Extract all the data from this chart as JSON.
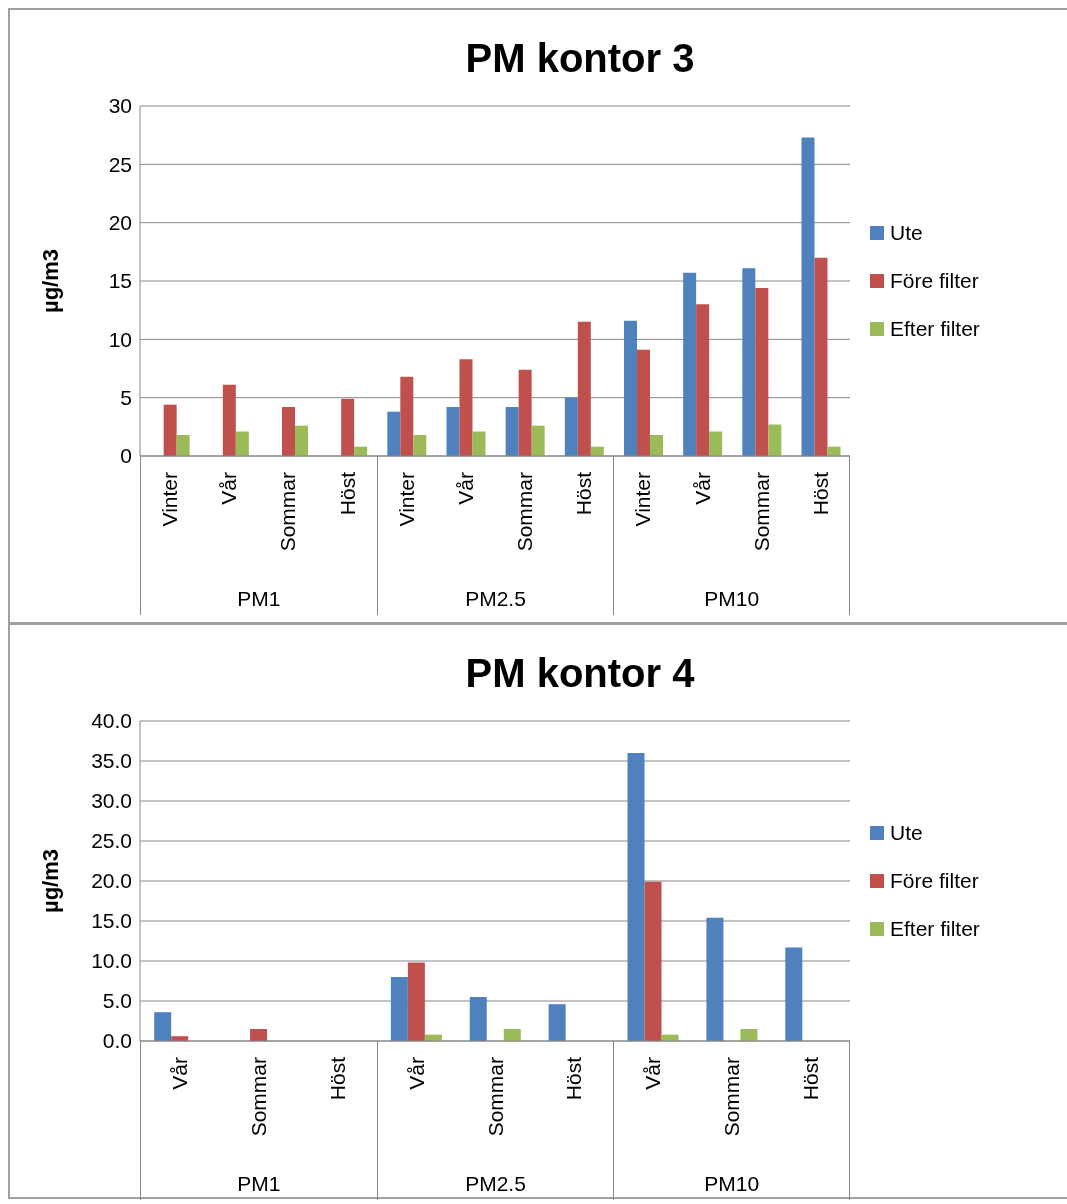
{
  "chart_data": [
    {
      "type": "bar",
      "title": "PM kontor 3",
      "ylabel": "µg/m3",
      "categories": [
        "Vinter",
        "Vår",
        "Sommar",
        "Höst",
        "Vinter",
        "Vår",
        "Sommar",
        "Höst",
        "Vinter",
        "Vår",
        "Sommar",
        "Höst"
      ],
      "annotations": [
        "PM1",
        "PM2.5",
        "PM10"
      ],
      "series": [
        {
          "name": "Ute",
          "color": "#4f81bd",
          "values": [
            null,
            null,
            null,
            null,
            3.8,
            4.2,
            4.2,
            5.0,
            11.6,
            15.7,
            16.1,
            27.3
          ]
        },
        {
          "name": "Före filter",
          "color": "#c0504d",
          "values": [
            4.4,
            6.1,
            4.2,
            4.9,
            6.8,
            8.3,
            7.4,
            11.5,
            9.1,
            13.0,
            14.4,
            17.0
          ]
        },
        {
          "name": "Efter filter",
          "color": "#9bbb59",
          "values": [
            1.8,
            2.1,
            2.6,
            0.8,
            1.8,
            2.1,
            2.6,
            0.8,
            1.8,
            2.1,
            2.7,
            0.8
          ]
        }
      ],
      "ylim": [
        0,
        30
      ],
      "yticks": [
        0,
        5,
        10,
        15,
        20,
        25,
        30
      ],
      "grid": "y",
      "legend": "right"
    },
    {
      "type": "bar",
      "title": "PM kontor 4",
      "ylabel": "µg/m3",
      "categories": [
        "Vår",
        "Sommar",
        "Höst",
        "Vår",
        "Sommar",
        "Höst",
        "Vår",
        "Sommar",
        "Höst"
      ],
      "annotations": [
        "PM1",
        "PM2.5",
        "PM10"
      ],
      "series": [
        {
          "name": "Ute",
          "color": "#4f81bd",
          "values": [
            3.6,
            null,
            null,
            8.0,
            5.5,
            4.6,
            36.0,
            15.4,
            11.7
          ]
        },
        {
          "name": "Före filter",
          "color": "#c0504d",
          "values": [
            0.6,
            1.5,
            null,
            9.8,
            null,
            null,
            19.9,
            null,
            null
          ]
        },
        {
          "name": "Efter filter",
          "color": "#9bbb59",
          "values": [
            null,
            null,
            null,
            0.8,
            1.5,
            null,
            0.8,
            1.5,
            null
          ]
        }
      ],
      "ylim": [
        0,
        40
      ],
      "yticks": [
        {
          "value": 0,
          "label": "0.0"
        },
        {
          "value": 5,
          "label": "5.0"
        },
        {
          "value": 10,
          "label": "10.0"
        },
        {
          "value": 15,
          "label": "15.0"
        },
        {
          "value": 20,
          "label": "20.0"
        },
        {
          "value": 25,
          "label": "25.0"
        },
        {
          "value": 30,
          "label": "30.0"
        },
        {
          "value": 35,
          "label": "35.0"
        },
        {
          "value": 40,
          "label": "40.0"
        }
      ],
      "grid": "y",
      "legend": "right"
    }
  ]
}
